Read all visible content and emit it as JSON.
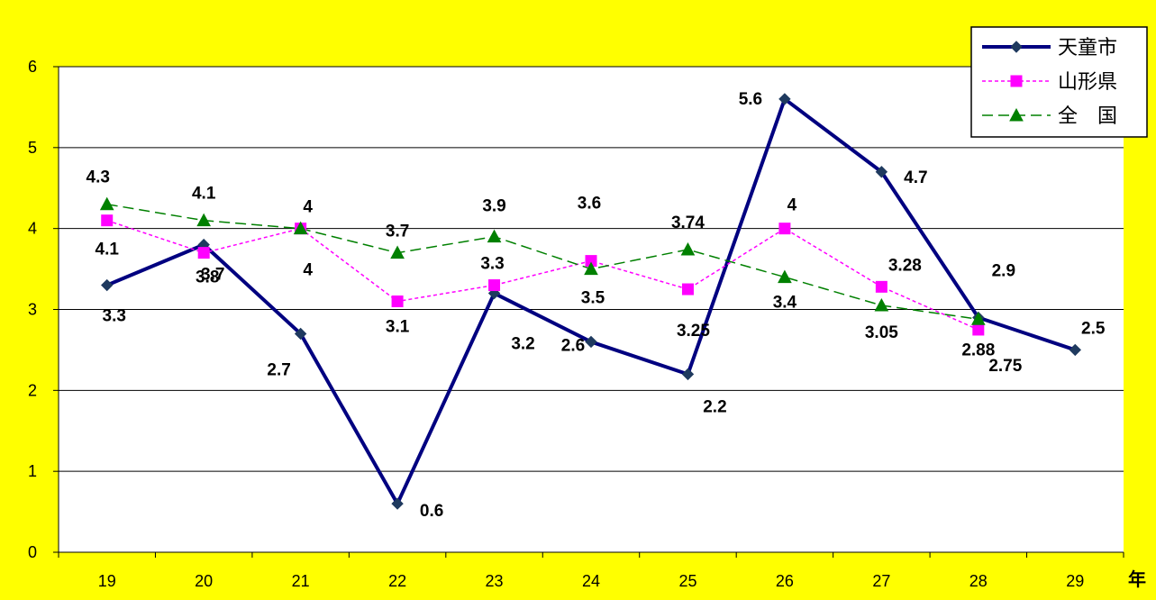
{
  "chart_data": {
    "type": "line",
    "title": "",
    "xlabel": "年",
    "ylabel": "",
    "ylim": [
      0,
      6
    ],
    "yticks": [
      0,
      1,
      2,
      3,
      4,
      5,
      6
    ],
    "grid": true,
    "legend_position": "top-right",
    "background": "#ffff00",
    "categories": [
      "19",
      "20",
      "21",
      "22",
      "23",
      "24",
      "25",
      "26",
      "27",
      "28",
      "29"
    ],
    "series": [
      {
        "name": "天童市",
        "values": [
          3.3,
          3.8,
          2.7,
          0.6,
          3.2,
          2.6,
          2.2,
          5.6,
          4.7,
          2.9,
          2.5
        ],
        "labels": [
          "3.3",
          "3.8",
          "2.7",
          "0.6",
          "3.2",
          "2.6",
          "2.2",
          "5.6",
          "4.7",
          "2.9",
          "2.5"
        ],
        "color": "#000080",
        "dash": "solid",
        "marker": "diamond"
      },
      {
        "name": "山形県",
        "values": [
          4.1,
          3.7,
          4.0,
          3.1,
          3.3,
          3.6,
          3.25,
          4.0,
          3.28,
          2.75,
          null
        ],
        "labels": [
          "4.1",
          "3.7",
          "4",
          "3.1",
          "3.3",
          "3.6",
          "3.25",
          "4",
          "3.28",
          "2.75",
          ""
        ],
        "color": "#ff00ff",
        "dash": "dotted",
        "marker": "square"
      },
      {
        "name": "全　国",
        "values": [
          4.3,
          4.1,
          4.0,
          3.7,
          3.9,
          3.5,
          3.74,
          3.4,
          3.05,
          2.88,
          null
        ],
        "labels": [
          "4.3",
          "4.1",
          "4",
          "3.7",
          "3.9",
          "3.5",
          "3.74",
          "3.4",
          "3.05",
          "2.88",
          ""
        ],
        "color": "#008000",
        "dash": "dashed",
        "marker": "triangle"
      }
    ]
  }
}
